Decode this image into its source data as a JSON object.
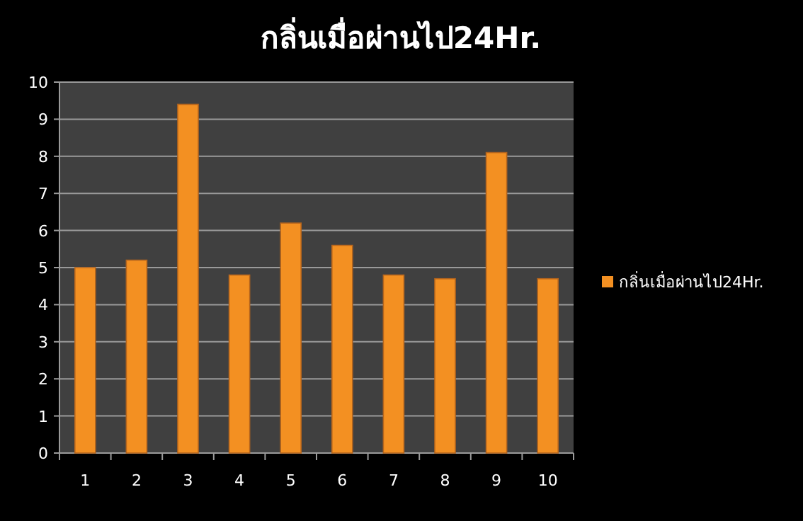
{
  "chart_data": {
    "type": "bar",
    "title": "กลิ่นเมื่อผ่านไป24Hr.",
    "categories": [
      "1",
      "2",
      "3",
      "4",
      "5",
      "6",
      "7",
      "8",
      "9",
      "10"
    ],
    "series": [
      {
        "name": "กลิ่นเมื่อผ่านไป24Hr.",
        "color": "#f39022",
        "values": [
          5.0,
          5.2,
          9.4,
          4.8,
          6.2,
          5.6,
          4.8,
          4.7,
          8.1,
          4.7
        ]
      }
    ],
    "ylim": [
      0,
      10
    ],
    "yticks": [
      0,
      1,
      2,
      3,
      4,
      5,
      6,
      7,
      8,
      9,
      10
    ],
    "grid": "y",
    "legend": "right"
  }
}
